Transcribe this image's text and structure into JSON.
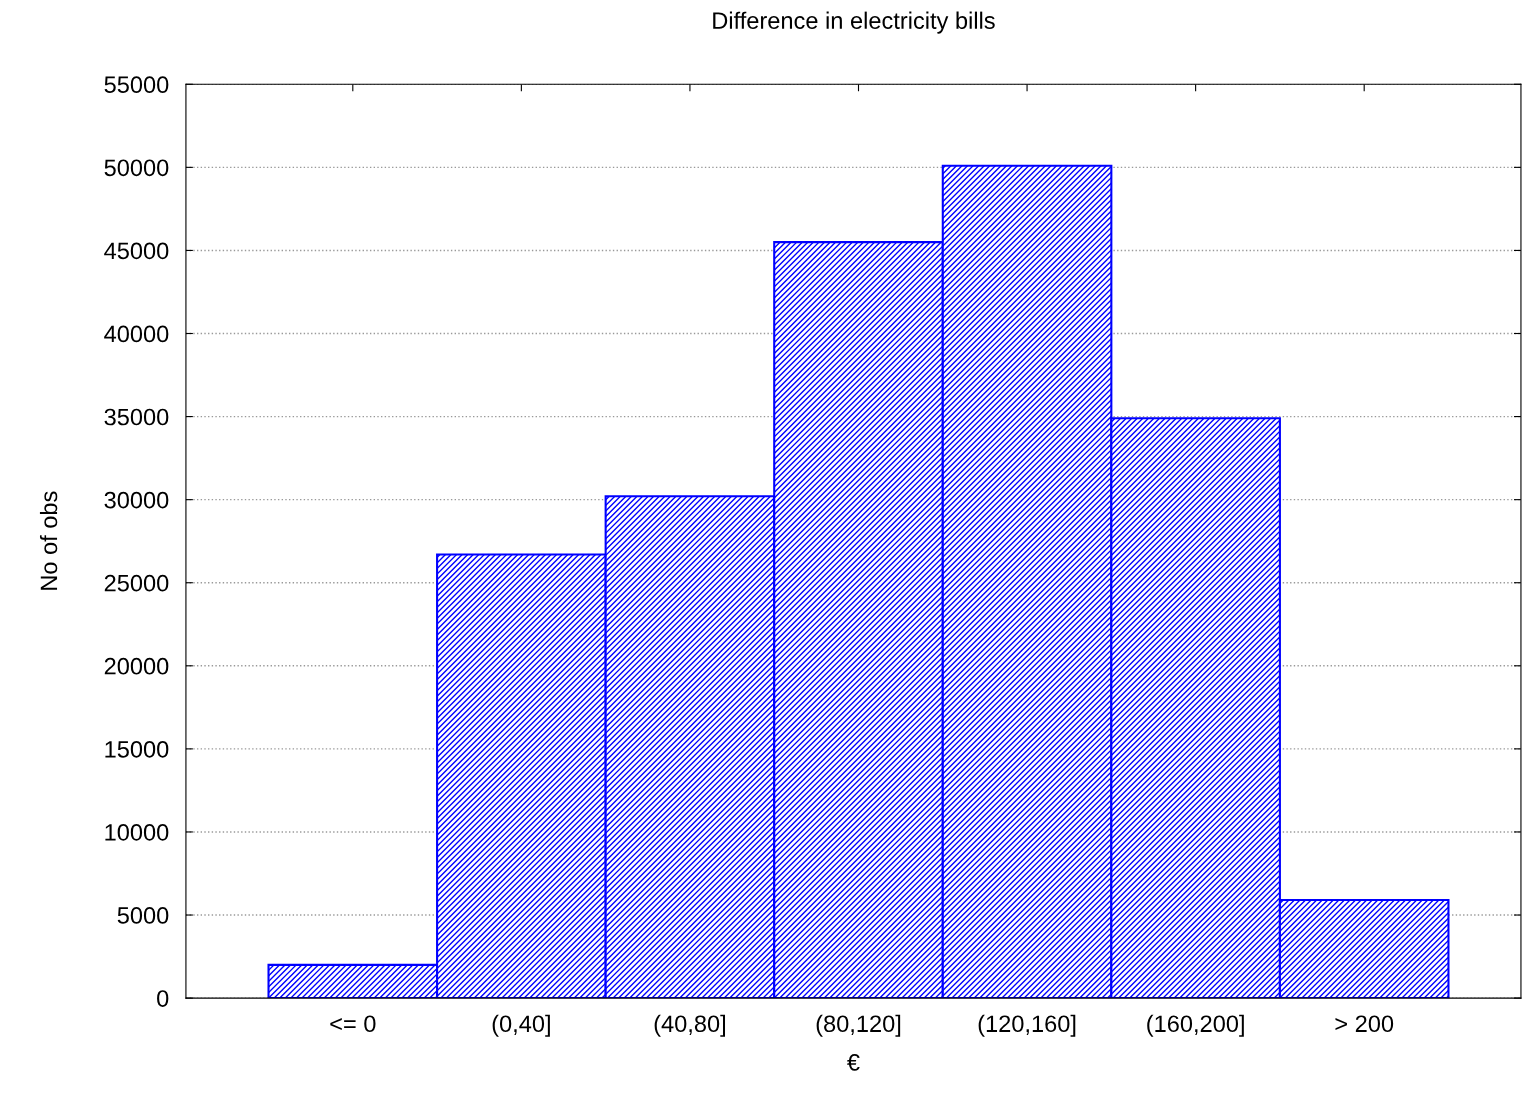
{
  "chart_data": {
    "type": "bar",
    "title": "Difference in electricity bills",
    "xlabel": "€",
    "ylabel": "No of obs",
    "categories": [
      "<= 0",
      "(0,40]",
      "(40,80]",
      "(80,120]",
      "(120,160]",
      "(160,200]",
      "> 200"
    ],
    "values": [
      2000,
      26700,
      30200,
      45500,
      50100,
      34900,
      5900
    ],
    "color": "#0000ff",
    "ylim": [
      0,
      55000
    ],
    "yticks": [
      0,
      5000,
      10000,
      15000,
      20000,
      25000,
      30000,
      35000,
      40000,
      45000,
      50000,
      55000
    ],
    "grid": "y"
  }
}
